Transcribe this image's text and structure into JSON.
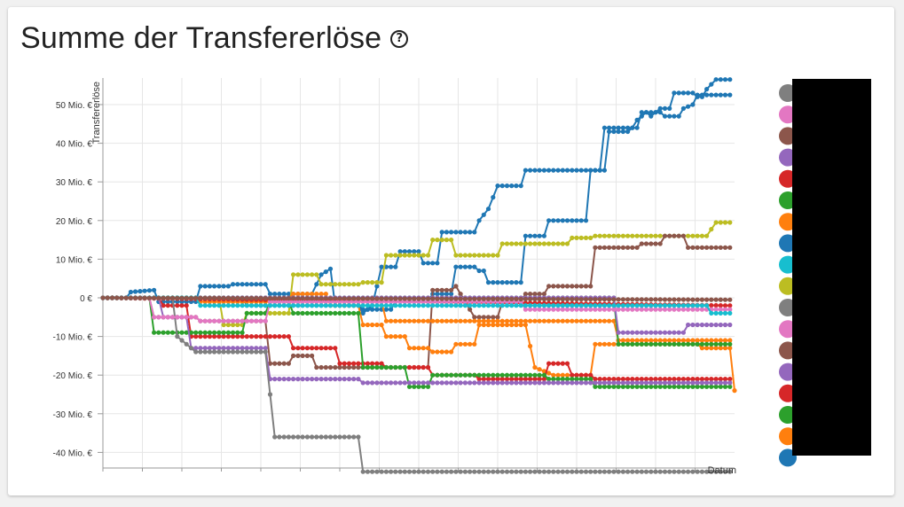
{
  "page": {
    "title": "Summe der Transfererlöse",
    "help_icon": "help-circle-icon"
  },
  "chart_data": {
    "type": "line",
    "title": "Summe der Transfererlöse",
    "xlabel": "Datum",
    "ylabel": "Transfererlöse",
    "ylim": [
      -45,
      57
    ],
    "yticks": [
      -40,
      -30,
      -20,
      -10,
      0,
      10,
      20,
      30,
      40,
      50
    ],
    "ytick_labels": [
      "-40 Mio. €",
      "-30 Mio. €",
      "-20 Mio. €",
      "-10 Mio. €",
      "0 €",
      "10 Mio. €",
      "20 Mio. €",
      "30 Mio. €",
      "40 Mio. €",
      "50 Mio. €"
    ],
    "x_ticks_count": 16,
    "grid": true,
    "legend": "right",
    "legend_colors": [
      "#7f7f7f",
      "#e377c2",
      "#8c564b",
      "#9467bd",
      "#d62728",
      "#2ca02c",
      "#ff7f0e",
      "#1f77b4",
      "#17becf",
      "#bcbd22",
      "#7f7f7f",
      "#e377c2",
      "#8c564b",
      "#9467bd",
      "#d62728",
      "#2ca02c",
      "#ff7f0e",
      "#1f77b4"
    ],
    "series": [
      {
        "color": "#1f77b4",
        "points": [
          [
            0,
            0
          ],
          [
            5,
            0
          ],
          [
            6,
            1.5
          ],
          [
            11,
            2
          ],
          [
            12,
            -1
          ],
          [
            20,
            -1
          ],
          [
            21,
            3
          ],
          [
            27,
            3
          ],
          [
            28,
            3.5
          ],
          [
            35,
            3.5
          ],
          [
            36,
            1
          ],
          [
            45,
            1
          ],
          [
            47,
            6
          ],
          [
            49,
            7.5
          ],
          [
            50,
            -2
          ],
          [
            55,
            -2
          ],
          [
            56,
            -4
          ],
          [
            58,
            -2
          ],
          [
            60,
            8
          ],
          [
            63,
            8
          ],
          [
            64,
            12
          ],
          [
            68,
            12
          ],
          [
            69,
            9
          ],
          [
            72,
            9
          ],
          [
            73,
            17
          ],
          [
            80,
            17
          ],
          [
            81,
            20
          ],
          [
            83,
            23
          ],
          [
            85,
            29
          ],
          [
            90,
            29
          ],
          [
            91,
            33
          ],
          [
            107,
            33
          ],
          [
            108,
            44
          ],
          [
            115,
            44
          ],
          [
            116,
            48
          ],
          [
            117,
            48
          ],
          [
            118,
            47
          ],
          [
            120,
            49
          ],
          [
            122,
            49
          ],
          [
            123,
            53
          ],
          [
            127,
            53
          ],
          [
            128,
            52
          ],
          [
            129,
            52
          ],
          [
            130,
            54
          ],
          [
            132,
            56.5
          ],
          [
            135,
            56.5
          ]
        ]
      },
      {
        "color": "#1f77b4",
        "points": [
          [
            0,
            0
          ],
          [
            30,
            0
          ],
          [
            31,
            -2
          ],
          [
            55,
            -2
          ],
          [
            56,
            -3
          ],
          [
            62,
            -3
          ],
          [
            63,
            -1
          ],
          [
            70,
            -1
          ],
          [
            71,
            1
          ],
          [
            75,
            1
          ],
          [
            76,
            8
          ],
          [
            80,
            8
          ],
          [
            81,
            7
          ],
          [
            82,
            7
          ],
          [
            83,
            4
          ],
          [
            90,
            4
          ],
          [
            91,
            16
          ],
          [
            95,
            16
          ],
          [
            96,
            20
          ],
          [
            104,
            20
          ],
          [
            105,
            33
          ],
          [
            108,
            33
          ],
          [
            109,
            43
          ],
          [
            113,
            43
          ],
          [
            114,
            44
          ],
          [
            115,
            46
          ],
          [
            117,
            48
          ],
          [
            120,
            48
          ],
          [
            121,
            47
          ],
          [
            124,
            47
          ],
          [
            125,
            49
          ],
          [
            127,
            50
          ],
          [
            128,
            52.5
          ],
          [
            135,
            52.5
          ]
        ]
      },
      {
        "color": "#bcbd22",
        "points": [
          [
            0,
            0
          ],
          [
            25,
            0
          ],
          [
            26,
            -7
          ],
          [
            30,
            -7
          ],
          [
            31,
            -4
          ],
          [
            40,
            -4
          ],
          [
            41,
            6
          ],
          [
            46,
            6
          ],
          [
            47,
            3.5
          ],
          [
            55,
            3.5
          ],
          [
            56,
            4
          ],
          [
            60,
            4
          ],
          [
            61,
            11
          ],
          [
            70,
            11
          ],
          [
            71,
            15
          ],
          [
            75,
            15
          ],
          [
            76,
            11
          ],
          [
            85,
            11
          ],
          [
            86,
            14
          ],
          [
            100,
            14
          ],
          [
            101,
            15.5
          ],
          [
            105,
            15.5
          ],
          [
            106,
            16
          ],
          [
            125,
            16
          ],
          [
            126,
            16
          ],
          [
            130,
            16
          ],
          [
            132,
            19.5
          ],
          [
            135,
            19.5
          ]
        ]
      },
      {
        "color": "#8c564b",
        "points": [
          [
            0,
            0
          ],
          [
            10,
            0
          ],
          [
            11,
            -5
          ],
          [
            20,
            -5
          ],
          [
            21,
            -6
          ],
          [
            35,
            -6
          ],
          [
            36,
            -17
          ],
          [
            40,
            -17
          ],
          [
            41,
            -15
          ],
          [
            45,
            -15
          ],
          [
            46,
            -18
          ],
          [
            70,
            -18
          ],
          [
            71,
            2
          ],
          [
            75,
            2
          ],
          [
            76,
            3
          ],
          [
            80,
            -5
          ],
          [
            85,
            -5
          ],
          [
            86,
            -1
          ],
          [
            90,
            -1
          ],
          [
            91,
            1
          ],
          [
            95,
            1
          ],
          [
            96,
            3
          ],
          [
            105,
            3
          ],
          [
            106,
            13
          ],
          [
            115,
            13
          ],
          [
            116,
            14
          ],
          [
            120,
            14
          ],
          [
            121,
            16
          ],
          [
            125,
            16
          ],
          [
            126,
            13
          ],
          [
            135,
            13
          ]
        ]
      },
      {
        "color": "#ff7f0e",
        "points": [
          [
            0,
            0
          ],
          [
            40,
            0
          ],
          [
            41,
            1
          ],
          [
            48,
            1
          ],
          [
            49,
            -2
          ],
          [
            55,
            -2
          ],
          [
            56,
            -7
          ],
          [
            60,
            -7
          ],
          [
            61,
            -10
          ],
          [
            65,
            -10
          ],
          [
            66,
            -13
          ],
          [
            70,
            -13
          ],
          [
            71,
            -14
          ],
          [
            75,
            -14
          ],
          [
            76,
            -12
          ],
          [
            80,
            -12
          ],
          [
            81,
            -7
          ],
          [
            90,
            -7
          ],
          [
            91,
            -7
          ],
          [
            93,
            -18
          ],
          [
            97,
            -20
          ],
          [
            105,
            -20
          ],
          [
            106,
            -12
          ],
          [
            128,
            -12
          ],
          [
            129,
            -13
          ],
          [
            135,
            -13
          ],
          [
            136,
            -24
          ]
        ]
      },
      {
        "color": "#ff7f0e",
        "points": [
          [
            0,
            0
          ],
          [
            20,
            0
          ],
          [
            21,
            -1
          ],
          [
            50,
            -1
          ],
          [
            51,
            -1
          ],
          [
            60,
            -1
          ],
          [
            61,
            -6
          ],
          [
            75,
            -6
          ],
          [
            76,
            -6
          ],
          [
            110,
            -6
          ],
          [
            111,
            -11
          ],
          [
            135,
            -11
          ]
        ]
      },
      {
        "color": "#d62728",
        "points": [
          [
            0,
            0
          ],
          [
            12,
            0
          ],
          [
            13,
            -2
          ],
          [
            18,
            -2
          ],
          [
            19,
            -10
          ],
          [
            40,
            -10
          ],
          [
            41,
            -13
          ],
          [
            50,
            -13
          ],
          [
            51,
            -17
          ],
          [
            60,
            -17
          ],
          [
            61,
            -18
          ],
          [
            70,
            -18
          ],
          [
            71,
            -20
          ],
          [
            80,
            -20
          ],
          [
            81,
            -21
          ],
          [
            95,
            -21
          ],
          [
            96,
            -17
          ],
          [
            100,
            -17
          ],
          [
            101,
            -20
          ],
          [
            105,
            -20
          ],
          [
            106,
            -21
          ],
          [
            135,
            -21
          ]
        ]
      },
      {
        "color": "#d62728",
        "points": [
          [
            0,
            0
          ],
          [
            135,
            -2
          ]
        ]
      },
      {
        "color": "#2ca02c",
        "points": [
          [
            0,
            0
          ],
          [
            10,
            0
          ],
          [
            11,
            -9
          ],
          [
            20,
            -9
          ],
          [
            21,
            -9
          ],
          [
            30,
            -9
          ],
          [
            31,
            -4
          ],
          [
            35,
            -4
          ],
          [
            36,
            -1
          ],
          [
            40,
            -1
          ],
          [
            41,
            -4
          ],
          [
            55,
            -4
          ],
          [
            56,
            -18
          ],
          [
            65,
            -18
          ],
          [
            66,
            -23
          ],
          [
            70,
            -23
          ],
          [
            71,
            -20
          ],
          [
            95,
            -20
          ],
          [
            96,
            -21
          ],
          [
            105,
            -21
          ],
          [
            106,
            -23
          ],
          [
            135,
            -23
          ]
        ]
      },
      {
        "color": "#2ca02c",
        "points": [
          [
            0,
            0
          ],
          [
            110,
            0
          ],
          [
            111,
            -12
          ],
          [
            135,
            -12
          ]
        ]
      },
      {
        "color": "#9467bd",
        "points": [
          [
            0,
            0
          ],
          [
            12,
            0
          ],
          [
            13,
            -5
          ],
          [
            18,
            -5
          ],
          [
            19,
            -13
          ],
          [
            35,
            -13
          ],
          [
            36,
            -21
          ],
          [
            55,
            -21
          ],
          [
            56,
            -22
          ],
          [
            70,
            -22
          ],
          [
            71,
            -22
          ],
          [
            135,
            -22
          ]
        ]
      },
      {
        "color": "#9467bd",
        "points": [
          [
            0,
            0
          ],
          [
            110,
            0
          ],
          [
            111,
            -9
          ],
          [
            125,
            -9
          ],
          [
            126,
            -7
          ],
          [
            135,
            -7
          ]
        ]
      },
      {
        "color": "#7f7f7f",
        "points": [
          [
            0,
            0
          ],
          [
            15,
            0
          ],
          [
            16,
            -10
          ],
          [
            20,
            -14
          ],
          [
            35,
            -14
          ],
          [
            36,
            -25
          ],
          [
            37,
            -36
          ],
          [
            55,
            -36
          ],
          [
            56,
            -45
          ],
          [
            135,
            -45
          ]
        ]
      },
      {
        "color": "#e377c2",
        "points": [
          [
            0,
            0
          ],
          [
            10,
            0
          ],
          [
            11,
            -5
          ],
          [
            20,
            -5
          ],
          [
            21,
            -6
          ],
          [
            35,
            -6
          ],
          [
            36,
            -1
          ],
          [
            90,
            -1
          ],
          [
            91,
            -3
          ],
          [
            135,
            -3
          ]
        ]
      },
      {
        "color": "#17becf",
        "points": [
          [
            0,
            0
          ],
          [
            20,
            0
          ],
          [
            21,
            -2
          ],
          [
            130,
            -2
          ],
          [
            131,
            -4
          ],
          [
            135,
            -4
          ]
        ]
      },
      {
        "color": "#8c564b",
        "points": [
          [
            0,
            0
          ],
          [
            135,
            -0.5
          ]
        ]
      }
    ]
  }
}
